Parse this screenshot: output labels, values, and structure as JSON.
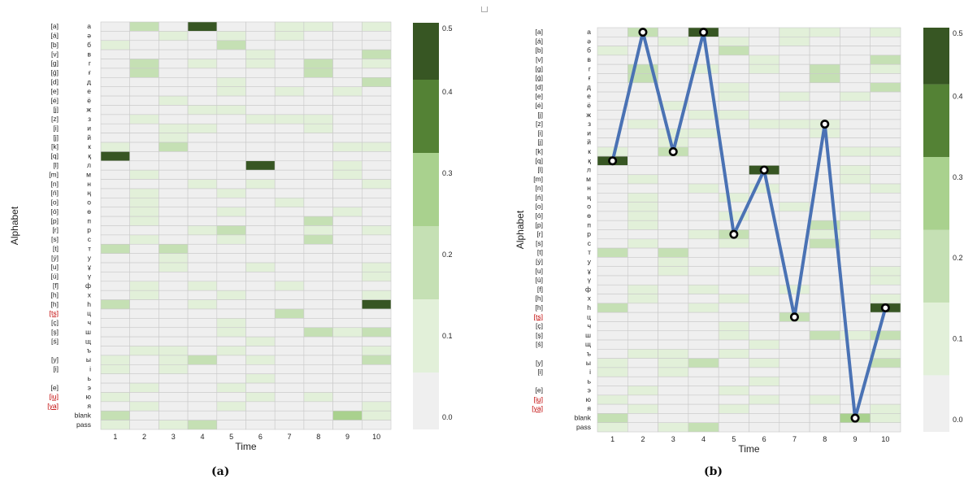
{
  "figure": {
    "captions": [
      "(a)",
      "(b)"
    ]
  },
  "chart_data": [
    {
      "type": "heatmap",
      "panel": "a",
      "xlabel": "Time",
      "ylabel": "Alphabet",
      "x": [
        1,
        2,
        3,
        4,
        5,
        6,
        7,
        8,
        9,
        10
      ],
      "row_labels": {
        "ipa": [
          "[a]",
          "[á]",
          "[b]",
          "[v]",
          "[g]",
          "[ǵ]",
          "[d]",
          "[e]",
          "[é]",
          "[j]",
          "[z]",
          "[i]",
          "[j]",
          "[k]",
          "[q]",
          "[l]",
          "[m]",
          "[n]",
          "[ń]",
          "[o]",
          "[ó]",
          "[p]",
          "[r]",
          "[s]",
          "[t]",
          "[ý]",
          "[u]",
          "[ú]",
          "[f]",
          "[h]",
          "[h]",
          "[ts]",
          "[ç]",
          "[ş]",
          "[ś]",
          "",
          "[y]",
          "[i]",
          "",
          "[e]",
          "[iu]",
          "[ya]",
          "",
          ""
        ],
        "cyrillic": [
          "а",
          "ә",
          "б",
          "в",
          "г",
          "ғ",
          "д",
          "е",
          "ё",
          "ж",
          "з",
          "и",
          "й",
          "к",
          "қ",
          "л",
          "м",
          "н",
          "ң",
          "о",
          "ө",
          "п",
          "р",
          "с",
          "т",
          "у",
          "ұ",
          "ү",
          "ф",
          "х",
          "һ",
          "ц",
          "ч",
          "ш",
          "щ",
          "ъ",
          "ы",
          "і",
          "ь",
          "э",
          "ю",
          "я",
          "blank",
          "pass"
        ]
      },
      "colorbar": {
        "ticks": [
          0.0,
          0.1,
          0.2,
          0.3,
          0.4,
          0.5
        ],
        "tick_labels": [
          "0.0",
          "0.1",
          "0.2",
          "0.3",
          "0.4",
          "0.5"
        ]
      },
      "levels": [
        [
          0,
          2,
          0,
          5,
          0,
          0,
          1,
          1,
          0,
          1
        ],
        [
          0,
          0,
          1,
          0,
          1,
          0,
          1,
          0,
          0,
          0
        ],
        [
          1,
          0,
          0,
          0,
          2,
          0,
          0,
          0,
          0,
          0
        ],
        [
          0,
          0,
          0,
          0,
          0,
          1,
          0,
          0,
          0,
          2
        ],
        [
          0,
          2,
          0,
          1,
          0,
          1,
          0,
          2,
          0,
          1
        ],
        [
          0,
          2,
          0,
          0,
          0,
          0,
          0,
          2,
          0,
          0
        ],
        [
          0,
          0,
          0,
          0,
          1,
          0,
          0,
          0,
          0,
          2
        ],
        [
          0,
          0,
          0,
          0,
          1,
          0,
          1,
          0,
          1,
          0
        ],
        [
          0,
          0,
          1,
          0,
          0,
          0,
          0,
          0,
          0,
          0
        ],
        [
          0,
          0,
          0,
          1,
          1,
          0,
          0,
          0,
          0,
          0
        ],
        [
          0,
          1,
          0,
          0,
          0,
          1,
          1,
          1,
          0,
          0
        ],
        [
          0,
          0,
          1,
          1,
          0,
          0,
          0,
          1,
          0,
          0
        ],
        [
          0,
          0,
          1,
          0,
          0,
          0,
          0,
          0,
          0,
          0
        ],
        [
          1,
          0,
          2,
          0,
          0,
          0,
          0,
          0,
          1,
          1
        ],
        [
          5,
          0,
          0,
          0,
          0,
          0,
          0,
          0,
          0,
          0
        ],
        [
          0,
          0,
          0,
          0,
          0,
          5,
          0,
          0,
          1,
          0
        ],
        [
          0,
          1,
          0,
          0,
          0,
          0,
          0,
          0,
          1,
          0
        ],
        [
          0,
          0,
          0,
          1,
          0,
          1,
          0,
          0,
          0,
          1
        ],
        [
          0,
          1,
          0,
          0,
          1,
          0,
          0,
          0,
          0,
          0
        ],
        [
          0,
          1,
          0,
          0,
          0,
          0,
          1,
          0,
          0,
          0
        ],
        [
          0,
          1,
          0,
          0,
          1,
          0,
          0,
          0,
          1,
          0
        ],
        [
          0,
          1,
          0,
          0,
          0,
          0,
          0,
          2,
          0,
          0
        ],
        [
          0,
          0,
          0,
          1,
          2,
          0,
          0,
          1,
          0,
          1
        ],
        [
          0,
          1,
          0,
          0,
          1,
          0,
          0,
          2,
          0,
          0
        ],
        [
          2,
          0,
          2,
          0,
          0,
          0,
          0,
          0,
          0,
          0
        ],
        [
          0,
          0,
          1,
          0,
          0,
          0,
          0,
          0,
          0,
          0
        ],
        [
          0,
          0,
          1,
          0,
          0,
          1,
          0,
          0,
          0,
          1
        ],
        [
          0,
          0,
          0,
          0,
          0,
          0,
          0,
          0,
          0,
          1
        ],
        [
          0,
          1,
          0,
          1,
          0,
          0,
          1,
          0,
          0,
          0
        ],
        [
          0,
          1,
          0,
          0,
          1,
          0,
          0,
          0,
          0,
          1
        ],
        [
          2,
          0,
          0,
          1,
          0,
          0,
          0,
          0,
          0,
          5
        ],
        [
          0,
          0,
          0,
          0,
          0,
          0,
          2,
          0,
          0,
          0
        ],
        [
          0,
          0,
          0,
          0,
          1,
          0,
          0,
          0,
          0,
          0
        ],
        [
          0,
          0,
          0,
          0,
          1,
          0,
          0,
          2,
          1,
          2
        ],
        [
          0,
          0,
          0,
          0,
          0,
          1,
          0,
          0,
          0,
          0
        ],
        [
          0,
          1,
          1,
          0,
          1,
          0,
          0,
          0,
          0,
          1
        ],
        [
          1,
          0,
          1,
          2,
          0,
          1,
          0,
          0,
          0,
          2
        ],
        [
          1,
          0,
          1,
          0,
          0,
          0,
          0,
          0,
          0,
          0
        ],
        [
          0,
          0,
          0,
          0,
          0,
          1,
          0,
          0,
          0,
          0
        ],
        [
          0,
          1,
          0,
          0,
          1,
          0,
          0,
          0,
          0,
          0
        ],
        [
          1,
          0,
          0,
          0,
          0,
          1,
          0,
          1,
          0,
          0
        ],
        [
          0,
          1,
          0,
          0,
          1,
          0,
          0,
          0,
          0,
          1
        ],
        [
          2,
          0,
          0,
          0,
          0,
          0,
          0,
          0,
          3,
          1
        ],
        [
          1,
          0,
          1,
          2,
          0,
          0,
          0,
          0,
          0,
          0
        ]
      ]
    },
    {
      "type": "heatmap",
      "panel": "b",
      "xlabel": "Time",
      "ylabel": "Alphabet",
      "x": [
        1,
        2,
        3,
        4,
        5,
        6,
        7,
        8,
        9,
        10
      ],
      "same_cells_as_panel": "a",
      "colorbar": {
        "ticks": [
          0.0,
          0.1,
          0.2,
          0.3,
          0.4,
          0.5
        ],
        "tick_labels": [
          "0.0",
          "0.1",
          "0.2",
          "0.3",
          "0.4",
          "0.5"
        ]
      },
      "path": {
        "name": "",
        "color": "#4a72b4",
        "points": [
          {
            "time": 1,
            "symbol": "қ"
          },
          {
            "time": 2,
            "symbol": "а"
          },
          {
            "time": 3,
            "symbol": "к"
          },
          {
            "time": 4,
            "symbol": "а"
          },
          {
            "time": 5,
            "symbol": "р"
          },
          {
            "time": 6,
            "symbol": "л"
          },
          {
            "time": 7,
            "symbol": "ц"
          },
          {
            "time": 8,
            "symbol": "з"
          },
          {
            "time": 9,
            "symbol": "blank"
          },
          {
            "time": 10,
            "symbol": "һ"
          }
        ]
      }
    }
  ],
  "colors": {
    "scale": [
      "#efefef",
      "#e2f0d9",
      "#c5e0b4",
      "#a9d18e",
      "#548235",
      "#375623"
    ],
    "grid": "#c9c9c9",
    "ipa_red": "#c00000"
  }
}
